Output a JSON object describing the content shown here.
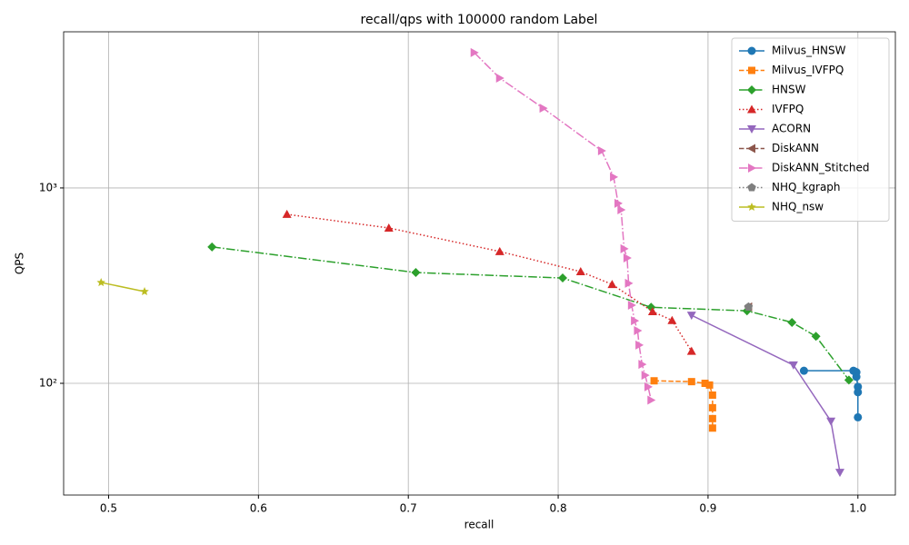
{
  "chart_data": {
    "type": "line",
    "title": "recall/qps with 100000 random Label",
    "x_label": "recall",
    "y_label": "QPS",
    "xlim": [
      0.47,
      1.025
    ],
    "ylim": [
      26.8,
      6300
    ],
    "yscale": "log",
    "grid": true,
    "legend_position": "upper right",
    "xticks": [
      0.5,
      0.6,
      0.7,
      0.8,
      0.9,
      {
        "value": 1,
        "label": "1.0"
      }
    ],
    "yticks": [
      {
        "value": 100,
        "label": "10²"
      },
      {
        "value": 1000,
        "label": "10³"
      }
    ],
    "series": [
      {
        "name": "Milvus_HNSW",
        "color": "#1f77b4",
        "marker": "circle",
        "linestyle": "solid",
        "x": [
          0.964,
          0.997,
          0.998,
          0.999,
          0.999,
          1.0,
          1.0,
          1.0
        ],
        "values": [
          116,
          116,
          115,
          114,
          108,
          96,
          90,
          67
        ]
      },
      {
        "name": "Milvus_IVFPQ",
        "color": "#ff7f0e",
        "marker": "square",
        "linestyle": "dashed",
        "x": [
          0.864,
          0.889,
          0.898,
          0.901,
          0.903,
          0.903,
          0.903,
          0.903
        ],
        "values": [
          103,
          102,
          100,
          98,
          87,
          75,
          66,
          59
        ]
      },
      {
        "name": "HNSW",
        "color": "#2ca02c",
        "marker": "diamond",
        "linestyle": "dashdot",
        "x": [
          0.569,
          0.705,
          0.803,
          0.862,
          0.926,
          0.956,
          0.972,
          0.994
        ],
        "values": [
          499,
          369,
          346,
          245,
          235,
          205,
          174,
          104
        ]
      },
      {
        "name": "IVFPQ",
        "color": "#d62728",
        "marker": "triangle-up",
        "linestyle": "dotted",
        "x": [
          0.619,
          0.687,
          0.761,
          0.815,
          0.836,
          0.863,
          0.876,
          0.889
        ],
        "values": [
          733,
          624,
          473,
          373,
          321,
          233,
          210,
          146
        ]
      },
      {
        "name": "ACORN",
        "color": "#9467bd",
        "marker": "triangle-down",
        "linestyle": "solid",
        "x": [
          0.889,
          0.957,
          0.982,
          0.988
        ],
        "values": [
          223,
          124,
          64,
          35
        ]
      },
      {
        "name": "DiskANN",
        "color": "#8c564b",
        "marker": "triangle-left",
        "linestyle": "dashed",
        "x": [
          0.927
        ],
        "values": [
          246
        ]
      },
      {
        "name": "DiskANN_Stitched",
        "color": "#e377c2",
        "marker": "triangle-right",
        "linestyle": "dashdot",
        "x": [
          0.744,
          0.761,
          0.79,
          0.829,
          0.837,
          0.84,
          0.842,
          0.844,
          0.846,
          0.847,
          0.849,
          0.851,
          0.853,
          0.854,
          0.856,
          0.858,
          0.86,
          0.862
        ],
        "values": [
          4930,
          3650,
          2560,
          1550,
          1137,
          834,
          773,
          488,
          438,
          325,
          251,
          209,
          186,
          157,
          125,
          110,
          96,
          82
        ]
      },
      {
        "name": "NHQ_kgraph",
        "color": "#7f7f7f",
        "marker": "pentagon",
        "linestyle": "dotted",
        "x": [
          0.927
        ],
        "values": [
          246
        ]
      },
      {
        "name": "NHQ_nsw",
        "color": "#bcbd22",
        "marker": "star",
        "linestyle": "solid",
        "x": [
          0.495,
          0.524
        ],
        "values": [
          328,
          295
        ]
      }
    ]
  }
}
